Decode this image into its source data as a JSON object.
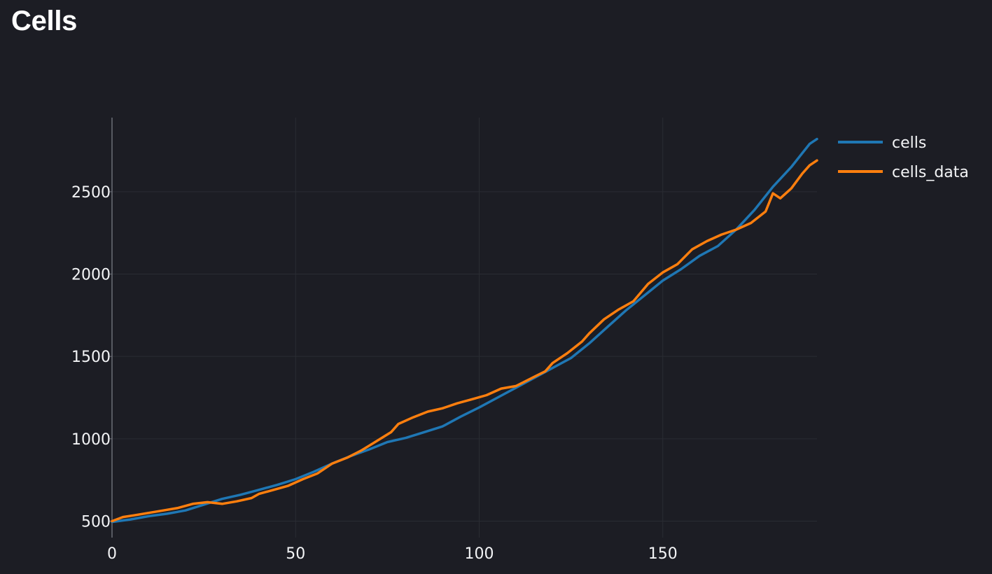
{
  "page": {
    "title": "Cells"
  },
  "colors": {
    "background": "#1c1d24",
    "grid": "#2a2c33",
    "axis": "#6b6e76",
    "text": "#f3f4f6",
    "cells": "#1f77b4",
    "cells_data": "#ff7f0e"
  },
  "chart_data": {
    "type": "line",
    "title": "",
    "xlabel": "",
    "ylabel": "",
    "xlim": [
      0,
      192
    ],
    "ylim": [
      400,
      2950
    ],
    "xticks": [
      0,
      50,
      100,
      150
    ],
    "yticks": [
      500,
      1000,
      1500,
      2000,
      2500
    ],
    "grid": true,
    "legend_position": "top-right outside",
    "series": [
      {
        "name": "cells",
        "color": "#1f77b4",
        "points": [
          [
            0,
            495
          ],
          [
            5,
            510
          ],
          [
            10,
            530
          ],
          [
            15,
            545
          ],
          [
            20,
            565
          ],
          [
            25,
            600
          ],
          [
            30,
            635
          ],
          [
            35,
            660
          ],
          [
            40,
            690
          ],
          [
            45,
            720
          ],
          [
            50,
            755
          ],
          [
            55,
            800
          ],
          [
            60,
            850
          ],
          [
            65,
            895
          ],
          [
            70,
            935
          ],
          [
            75,
            980
          ],
          [
            80,
            1005
          ],
          [
            85,
            1040
          ],
          [
            90,
            1075
          ],
          [
            95,
            1135
          ],
          [
            100,
            1190
          ],
          [
            105,
            1250
          ],
          [
            110,
            1310
          ],
          [
            115,
            1370
          ],
          [
            120,
            1430
          ],
          [
            125,
            1490
          ],
          [
            130,
            1580
          ],
          [
            135,
            1680
          ],
          [
            140,
            1780
          ],
          [
            145,
            1870
          ],
          [
            150,
            1960
          ],
          [
            155,
            2030
          ],
          [
            160,
            2110
          ],
          [
            165,
            2170
          ],
          [
            170,
            2270
          ],
          [
            175,
            2390
          ],
          [
            180,
            2530
          ],
          [
            185,
            2650
          ],
          [
            190,
            2790
          ],
          [
            192,
            2820
          ]
        ]
      },
      {
        "name": "cells_data",
        "color": "#ff7f0e",
        "points": [
          [
            0,
            500
          ],
          [
            3,
            525
          ],
          [
            6,
            535
          ],
          [
            10,
            550
          ],
          [
            14,
            565
          ],
          [
            18,
            580
          ],
          [
            22,
            605
          ],
          [
            26,
            615
          ],
          [
            30,
            605
          ],
          [
            34,
            620
          ],
          [
            38,
            640
          ],
          [
            40,
            665
          ],
          [
            44,
            690
          ],
          [
            48,
            715
          ],
          [
            52,
            755
          ],
          [
            56,
            790
          ],
          [
            60,
            850
          ],
          [
            64,
            885
          ],
          [
            68,
            930
          ],
          [
            72,
            985
          ],
          [
            76,
            1040
          ],
          [
            78,
            1090
          ],
          [
            82,
            1130
          ],
          [
            86,
            1165
          ],
          [
            90,
            1185
          ],
          [
            94,
            1215
          ],
          [
            98,
            1240
          ],
          [
            102,
            1265
          ],
          [
            106,
            1305
          ],
          [
            110,
            1320
          ],
          [
            114,
            1365
          ],
          [
            118,
            1410
          ],
          [
            120,
            1460
          ],
          [
            124,
            1520
          ],
          [
            128,
            1590
          ],
          [
            130,
            1640
          ],
          [
            134,
            1725
          ],
          [
            138,
            1785
          ],
          [
            142,
            1835
          ],
          [
            146,
            1940
          ],
          [
            150,
            2010
          ],
          [
            154,
            2060
          ],
          [
            158,
            2150
          ],
          [
            162,
            2200
          ],
          [
            166,
            2240
          ],
          [
            170,
            2270
          ],
          [
            174,
            2310
          ],
          [
            178,
            2380
          ],
          [
            180,
            2490
          ],
          [
            182,
            2460
          ],
          [
            185,
            2520
          ],
          [
            188,
            2610
          ],
          [
            190,
            2660
          ],
          [
            192,
            2690
          ]
        ]
      }
    ]
  }
}
